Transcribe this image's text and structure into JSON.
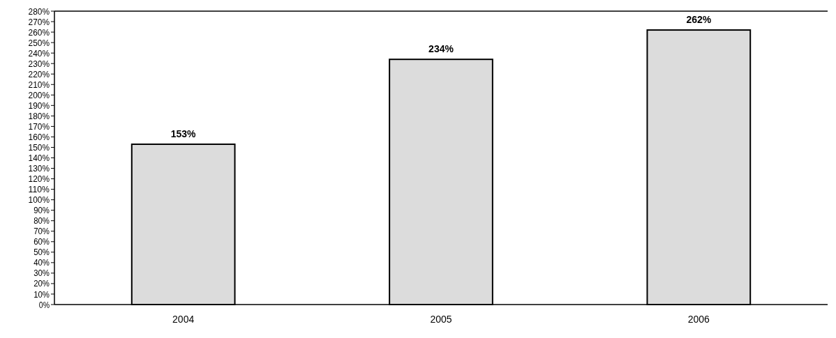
{
  "chart_data": {
    "type": "bar",
    "categories": [
      "2004",
      "2005",
      "2006"
    ],
    "values": [
      153,
      234,
      262
    ],
    "value_labels": [
      "153%",
      "234%",
      "262%"
    ],
    "color": "#dcdcdc",
    "ylim": [
      0,
      280
    ],
    "yticks": [
      {
        "value": 0,
        "label": "0%"
      },
      {
        "value": 10,
        "label": "10%"
      },
      {
        "value": 20,
        "label": "20%"
      },
      {
        "value": 30,
        "label": "30%"
      },
      {
        "value": 40,
        "label": "40%"
      },
      {
        "value": 50,
        "label": "50%"
      },
      {
        "value": 60,
        "label": "60%"
      },
      {
        "value": 70,
        "label": "70%"
      },
      {
        "value": 80,
        "label": "80%"
      },
      {
        "value": 90,
        "label": "90%"
      },
      {
        "value": 100,
        "label": "100%"
      },
      {
        "value": 110,
        "label": "110%"
      },
      {
        "value": 120,
        "label": "120%"
      },
      {
        "value": 130,
        "label": "130%"
      },
      {
        "value": 140,
        "label": "140%"
      },
      {
        "value": 150,
        "label": "150%"
      },
      {
        "value": 160,
        "label": "160%"
      },
      {
        "value": 170,
        "label": "170%"
      },
      {
        "value": 180,
        "label": "180%"
      },
      {
        "value": 190,
        "label": "190%"
      },
      {
        "value": 200,
        "label": "200%"
      },
      {
        "value": 210,
        "label": "210%"
      },
      {
        "value": 220,
        "label": "220%"
      },
      {
        "value": 230,
        "label": "230%"
      },
      {
        "value": 240,
        "label": "240%"
      },
      {
        "value": 250,
        "label": "250%"
      },
      {
        "value": 260,
        "label": "260%"
      },
      {
        "value": 270,
        "label": "270%"
      },
      {
        "value": 280,
        "label": "280%"
      }
    ],
    "grid": false
  }
}
